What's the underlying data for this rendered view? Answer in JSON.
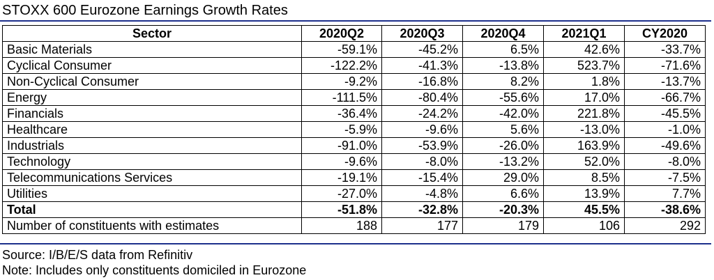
{
  "title": "STOXX 600 Eurozone Earnings Growth Rates",
  "table": {
    "headers": [
      "Sector",
      "2020Q2",
      "2020Q3",
      "2020Q4",
      "2021Q1",
      "CY2020"
    ],
    "rows": [
      {
        "sector": "Basic Materials",
        "values": [
          "-59.1%",
          "-45.2%",
          "6.5%",
          "42.6%",
          "-33.7%"
        ]
      },
      {
        "sector": "Cyclical Consumer",
        "values": [
          "-122.2%",
          "-41.3%",
          "-13.8%",
          "523.7%",
          "-71.6%"
        ]
      },
      {
        "sector": "Non-Cyclical Consumer",
        "values": [
          "-9.2%",
          "-16.8%",
          "8.2%",
          "1.8%",
          "-13.7%"
        ]
      },
      {
        "sector": "Energy",
        "values": [
          "-111.5%",
          "-80.4%",
          "-55.6%",
          "17.0%",
          "-66.7%"
        ]
      },
      {
        "sector": "Financials",
        "values": [
          "-36.4%",
          "-24.2%",
          "-42.0%",
          "221.8%",
          "-45.5%"
        ]
      },
      {
        "sector": "Healthcare",
        "values": [
          "-5.9%",
          "-9.6%",
          "5.6%",
          "-13.0%",
          "-1.0%"
        ]
      },
      {
        "sector": "Industrials",
        "values": [
          "-91.0%",
          "-53.9%",
          "-26.0%",
          "163.9%",
          "-49.6%"
        ]
      },
      {
        "sector": "Technology",
        "values": [
          "-9.6%",
          "-8.0%",
          "-13.2%",
          "52.0%",
          "-8.0%"
        ]
      },
      {
        "sector": "Telecommunications Services",
        "values": [
          "-19.1%",
          "-15.4%",
          "29.0%",
          "8.5%",
          "-7.5%"
        ]
      },
      {
        "sector": "Utilities",
        "values": [
          "-27.0%",
          "-4.8%",
          "6.6%",
          "13.9%",
          "7.7%"
        ]
      }
    ],
    "total": {
      "sector": "Total",
      "values": [
        "-51.8%",
        "-32.8%",
        "-20.3%",
        "45.5%",
        "-38.6%"
      ]
    },
    "constituents": {
      "sector": "Number of constituents with estimates",
      "values": [
        "188",
        "177",
        "179",
        "106",
        "292"
      ]
    }
  },
  "source": "Source: I/B/E/S data from Refinitiv",
  "note": "Note: Includes only constituents domiciled in Eurozone",
  "colors": {
    "rule": "#1c2f8c"
  }
}
